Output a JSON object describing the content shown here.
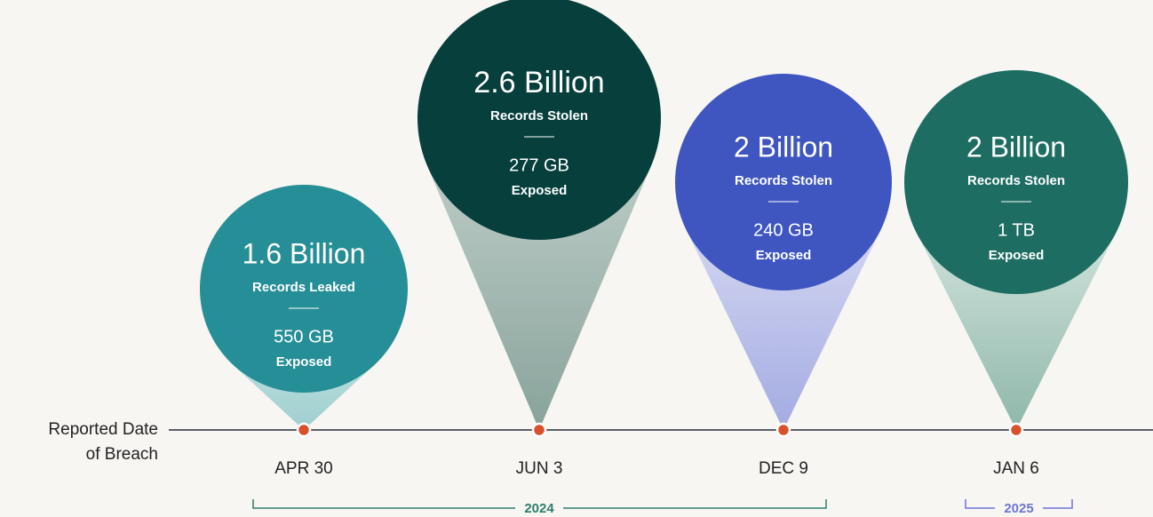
{
  "timeline_label": [
    "Reported Date",
    "of Breach"
  ],
  "events": [
    {
      "amount": "1.6 Billion",
      "records": "Records Leaked",
      "size": "550 GB",
      "exposed": "Exposed",
      "date": "APR 30"
    },
    {
      "amount": "2.6 Billion",
      "records": "Records Stolen",
      "size": "277 GB",
      "exposed": "Exposed",
      "date": "JUN 3"
    },
    {
      "amount": "2 Billion",
      "records": "Records Stolen",
      "size": "240 GB",
      "exposed": "Exposed",
      "date": "DEC 9"
    },
    {
      "amount": "2 Billion",
      "records": "Records Stolen",
      "size": "1 TB",
      "exposed": "Exposed",
      "date": "JAN 6"
    }
  ],
  "years": [
    "2024",
    "2025"
  ]
}
